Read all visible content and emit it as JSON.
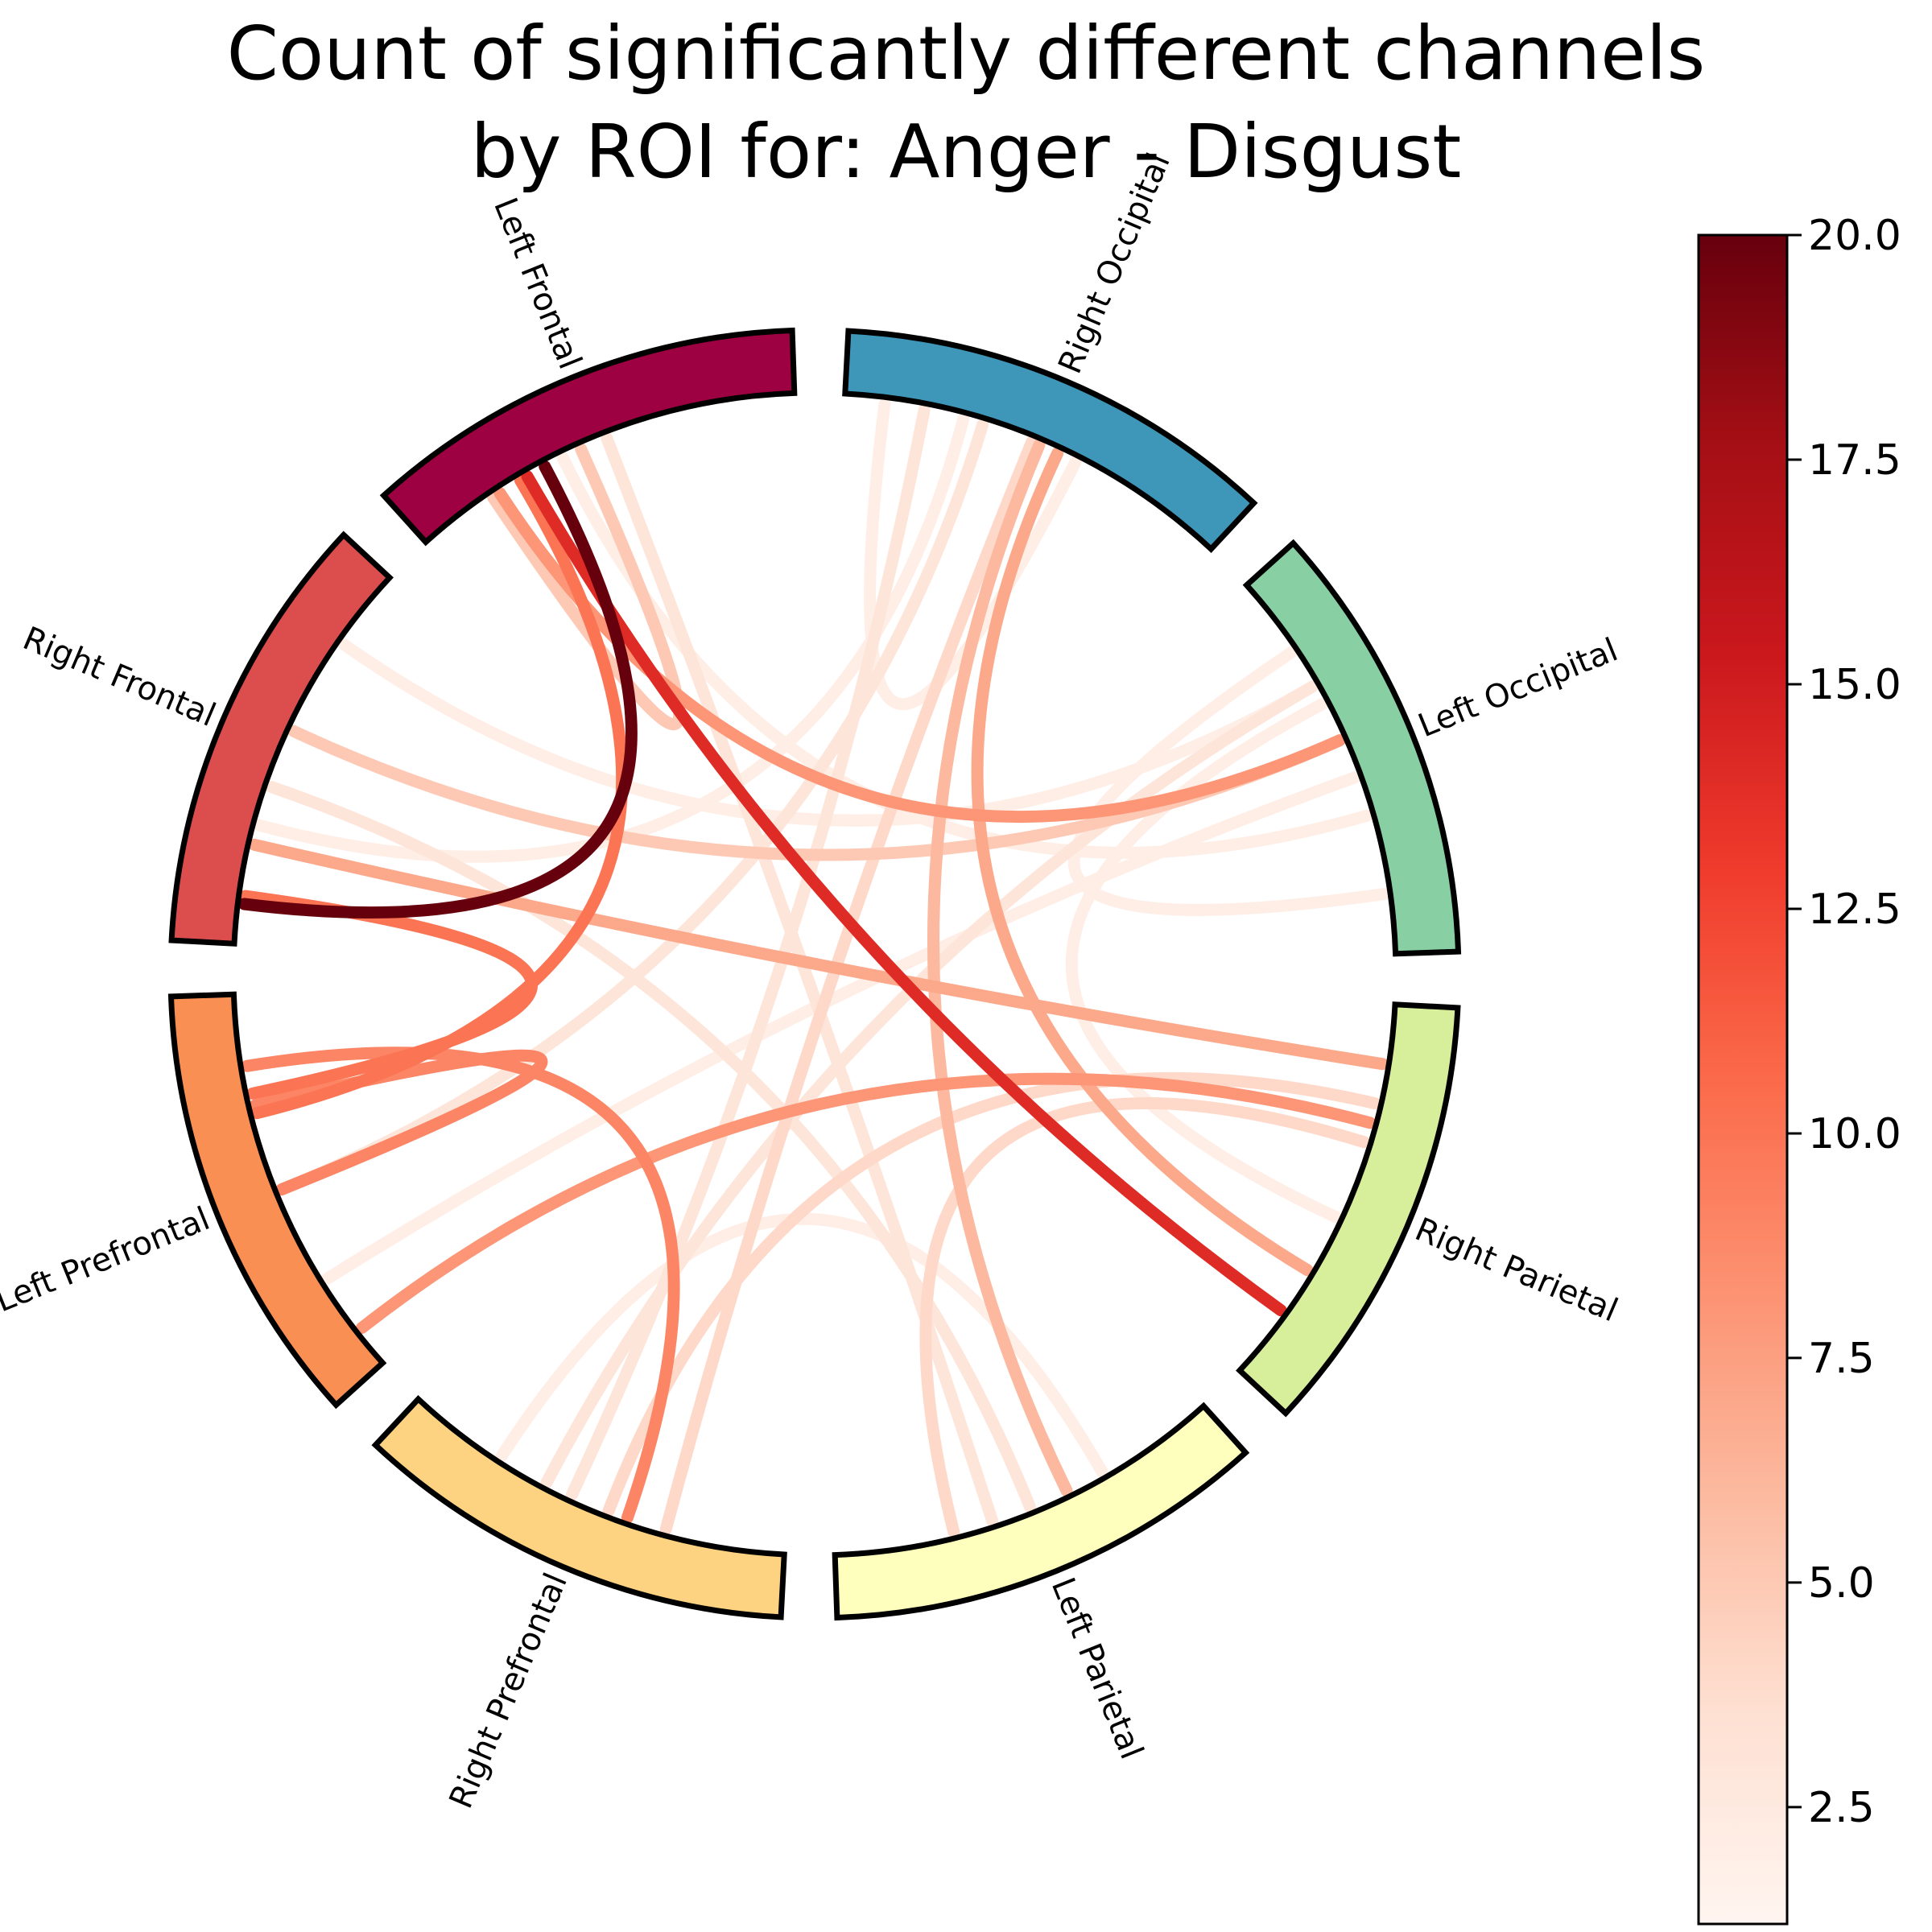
{
  "chart_data": {
    "type": "chord",
    "title_lines": [
      "Count of significantly different channels",
      "by ROI for: Anger - Disgust"
    ],
    "nodes": [
      {
        "name": "Right Occipital",
        "color": "#3e96b9"
      },
      {
        "name": "Left Occipital",
        "color": "#88d0a4"
      },
      {
        "name": "Right Parietal",
        "color": "#d7ee9b"
      },
      {
        "name": "Left Parietal",
        "color": "#feffbd"
      },
      {
        "name": "Right Prefrontal",
        "color": "#fdd382"
      },
      {
        "name": "Left Prefrontal",
        "color": "#f98f52"
      },
      {
        "name": "Right Frontal",
        "color": "#dc4d4d"
      },
      {
        "name": "Left Frontal",
        "color": "#9e0142"
      }
    ],
    "links": [
      {
        "a": 7,
        "ta": 0.35,
        "b": 6,
        "tb": 0.1,
        "value": 20
      },
      {
        "a": 7,
        "ta": 0.3,
        "b": 2,
        "tb": 0.82,
        "value": 14
      },
      {
        "a": 7,
        "ta": 0.28,
        "b": 5,
        "tb": 0.7,
        "value": 10
      },
      {
        "a": 6,
        "ta": 0.12,
        "b": 5,
        "tb": 0.75,
        "value": 10
      },
      {
        "a": 5,
        "ta": 0.72,
        "b": 5,
        "tb": 0.5,
        "value": 9
      },
      {
        "a": 5,
        "ta": 0.82,
        "b": 4,
        "tb": 0.4,
        "value": 9
      },
      {
        "a": 7,
        "ta": 0.22,
        "b": 1,
        "tb": 0.45,
        "value": 8
      },
      {
        "a": 5,
        "ta": 0.1,
        "b": 2,
        "tb": 0.3,
        "value": 8
      },
      {
        "a": 6,
        "ta": 0.25,
        "b": 2,
        "tb": 0.15,
        "value": 7
      },
      {
        "a": 0,
        "ta": 0.55,
        "b": 2,
        "tb": 0.7,
        "value": 7
      },
      {
        "a": 0,
        "ta": 0.5,
        "b": 3,
        "tb": 0.4,
        "value": 6
      },
      {
        "a": 7,
        "ta": 0.45,
        "b": 7,
        "tb": 0.2,
        "value": 5
      },
      {
        "a": 6,
        "ta": 0.55,
        "b": 1,
        "tb": 0.45,
        "value": 5
      },
      {
        "a": 4,
        "ta": 0.45,
        "b": 2,
        "tb": 0.25,
        "value": 4
      },
      {
        "a": 2,
        "ta": 0.35,
        "b": 3,
        "tb": 0.7,
        "value": 4
      },
      {
        "a": 0,
        "ta": 0.48,
        "b": 4,
        "tb": 0.3,
        "value": 4
      },
      {
        "a": 7,
        "ta": 0.52,
        "b": 3,
        "tb": 0.6,
        "value": 3
      },
      {
        "a": 6,
        "ta": 0.4,
        "b": 3,
        "tb": 0.5,
        "value": 3
      },
      {
        "a": 0,
        "ta": 0.35,
        "b": 5,
        "tb": 0.5,
        "value": 3
      },
      {
        "a": 0,
        "ta": 0.2,
        "b": 4,
        "tb": 0.55,
        "value": 3
      },
      {
        "a": 1,
        "ta": 0.3,
        "b": 4,
        "tb": 0.62,
        "value": 3
      },
      {
        "a": 6,
        "ta": 0.8,
        "b": 1,
        "tb": 0.3,
        "value": 2
      },
      {
        "a": 1,
        "ta": 0.2,
        "b": 1,
        "tb": 0.85,
        "value": 2
      },
      {
        "a": 1,
        "ta": 0.35,
        "b": 2,
        "tb": 0.55,
        "value": 2
      },
      {
        "a": 0,
        "ta": 0.3,
        "b": 6,
        "tb": 0.3,
        "value": 2
      },
      {
        "a": 0,
        "ta": 0.1,
        "b": 0,
        "tb": 0.6,
        "value": 2
      },
      {
        "a": 3,
        "ta": 0.3,
        "b": 4,
        "tb": 0.75,
        "value": 2
      },
      {
        "a": 1,
        "ta": 0.55,
        "b": 5,
        "tb": 0.25,
        "value": 2
      },
      {
        "a": 7,
        "ta": 0.4,
        "b": 1,
        "tb": 0.65,
        "value": 2
      }
    ],
    "colorbar": {
      "min": 1.2,
      "max": 20,
      "ticks": [
        2.5,
        5,
        7.5,
        10,
        12.5,
        15,
        17.5,
        20
      ],
      "tick_labels": [
        "2.5",
        "5.0",
        "7.5",
        "10.0",
        "12.5",
        "15.0",
        "17.5",
        "20.0"
      ],
      "colormap": "Reds"
    }
  }
}
